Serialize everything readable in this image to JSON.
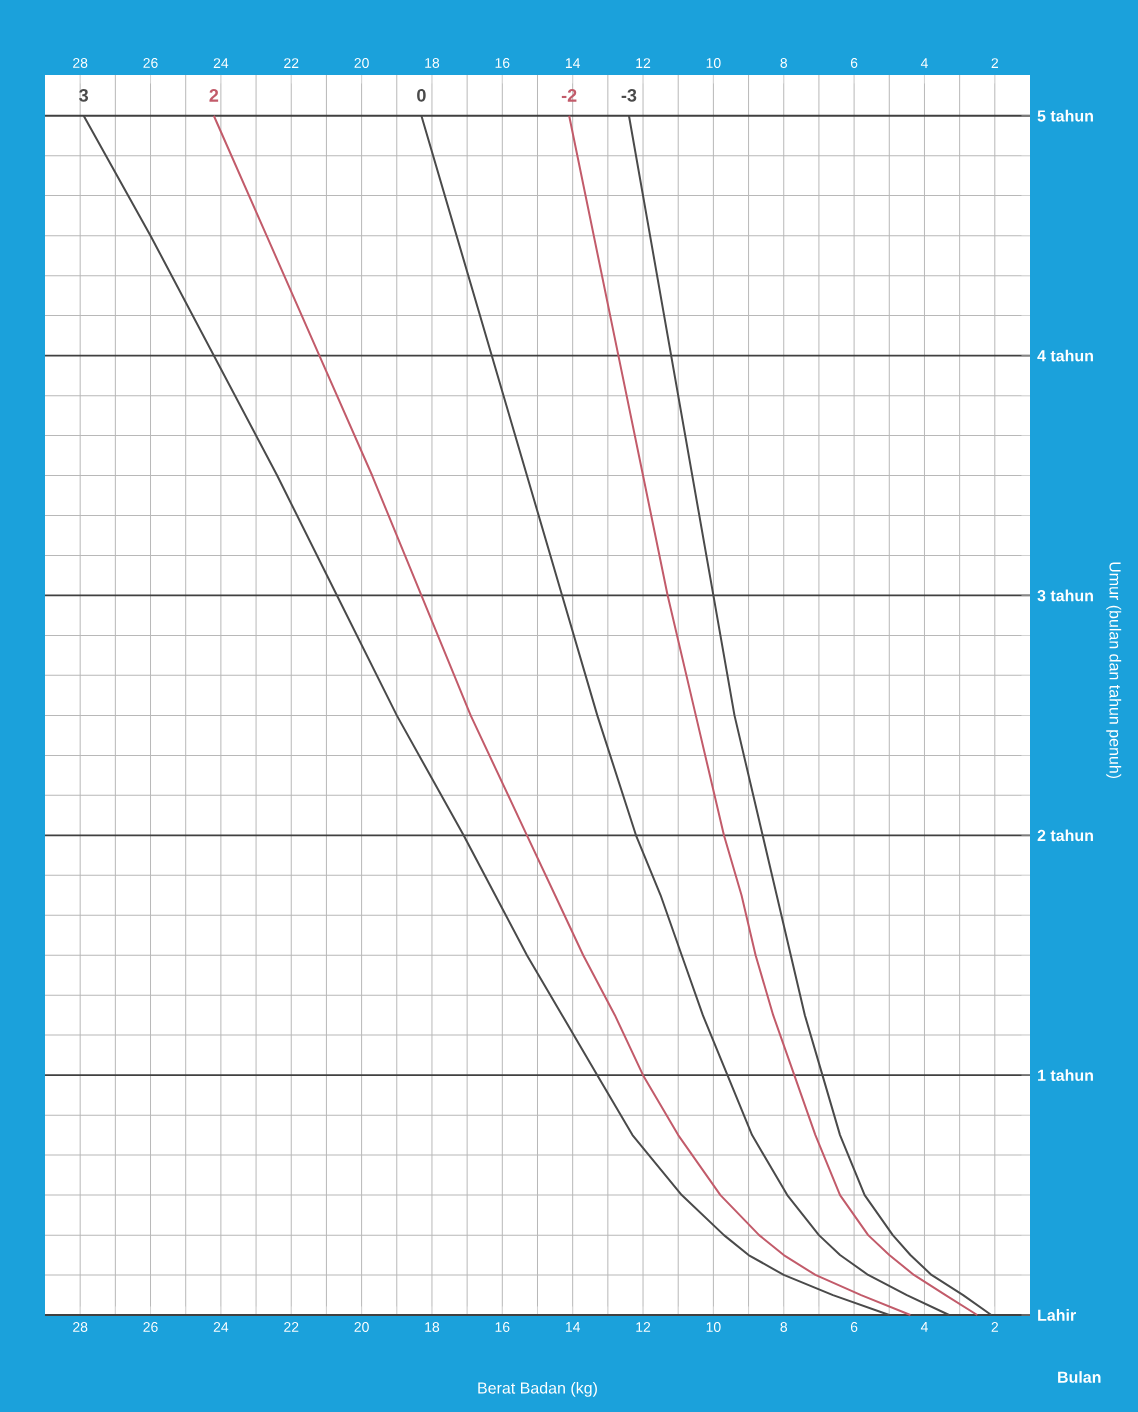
{
  "chart_data": {
    "type": "line",
    "xlabel": "Berat Badan (kg)",
    "ylabel": "Umur (bulan dan tahun penuh)",
    "annotations": [
      "Bulan"
    ],
    "xlim": [
      29,
      1
    ],
    "xticks": [
      28,
      {
        "value": 27,
        "label": null
      },
      26,
      {
        "value": 25,
        "label": null
      },
      24,
      {
        "value": 23,
        "label": null
      },
      22,
      {
        "value": 21,
        "label": null
      },
      20,
      {
        "value": 19,
        "label": null
      },
      18,
      {
        "value": 17,
        "label": null
      },
      16,
      {
        "value": 15,
        "label": null
      },
      14,
      {
        "value": 13,
        "label": null
      },
      12,
      {
        "value": 11,
        "label": null
      },
      10,
      {
        "value": 9,
        "label": null
      },
      8,
      {
        "value": 7,
        "label": null
      },
      6,
      {
        "value": 5,
        "label": null
      },
      4,
      {
        "value": 3,
        "label": null
      },
      2
    ],
    "x2lim": [
      29,
      1
    ],
    "x2ticks": [
      28,
      26,
      24,
      22,
      20,
      18,
      16,
      14,
      12,
      10,
      8,
      6,
      4,
      2
    ],
    "ylim": [
      0,
      5.17
    ],
    "yticks": [
      {
        "value": 0,
        "label": "Lahir"
      },
      {
        "value": 0.167,
        "label": null
      },
      {
        "value": 0.333,
        "label": null
      },
      {
        "value": 0.5,
        "label": null
      },
      {
        "value": 0.667,
        "label": null
      },
      {
        "value": 0.833,
        "label": null
      },
      {
        "value": 1,
        "label": "1 tahun"
      },
      {
        "value": 1.167,
        "label": null
      },
      {
        "value": 1.333,
        "label": null
      },
      {
        "value": 1.5,
        "label": null
      },
      {
        "value": 1.667,
        "label": null
      },
      {
        "value": 1.833,
        "label": null
      },
      {
        "value": 2,
        "label": "2 tahun"
      },
      {
        "value": 2.167,
        "label": null
      },
      {
        "value": 2.333,
        "label": null
      },
      {
        "value": 2.5,
        "label": null
      },
      {
        "value": 2.667,
        "label": null
      },
      {
        "value": 2.833,
        "label": null
      },
      {
        "value": 3,
        "label": "3 tahun"
      },
      {
        "value": 3.167,
        "label": null
      },
      {
        "value": 3.333,
        "label": null
      },
      {
        "value": 3.5,
        "label": null
      },
      {
        "value": 3.667,
        "label": null
      },
      {
        "value": 3.833,
        "label": null
      },
      {
        "value": 4,
        "label": "4 tahun"
      },
      {
        "value": 4.167,
        "label": null
      },
      {
        "value": 4.333,
        "label": null
      },
      {
        "value": 4.5,
        "label": null
      },
      {
        "value": 4.667,
        "label": null
      },
      {
        "value": 4.833,
        "label": null
      },
      {
        "value": 5,
        "label": "5 tahun"
      }
    ],
    "grid": true,
    "line_style": "solid",
    "series": [
      {
        "name": "3",
        "color": "#4a4a4a",
        "x": [
          5.0,
          6.6,
          8.0,
          9.0,
          9.7,
          10.9,
          12.3,
          13.3,
          14.3,
          15.3,
          16.2,
          17.1,
          19.0,
          20.7,
          22.4,
          24.2,
          26.0,
          27.9
        ],
        "values": [
          0,
          0.083,
          0.167,
          0.25,
          0.333,
          0.5,
          0.75,
          1,
          1.25,
          1.5,
          1.75,
          2,
          2.5,
          3,
          3.5,
          4,
          4.5,
          5
        ]
      },
      {
        "name": "2",
        "color": "#c25b6a",
        "x": [
          4.4,
          5.8,
          7.1,
          8.0,
          8.7,
          9.8,
          11.0,
          12.0,
          12.8,
          13.7,
          14.5,
          15.3,
          16.9,
          18.3,
          19.7,
          21.2,
          22.7,
          24.2
        ],
        "values": [
          0,
          0.083,
          0.167,
          0.25,
          0.333,
          0.5,
          0.75,
          1,
          1.25,
          1.5,
          1.75,
          2,
          2.5,
          3,
          3.5,
          4,
          4.5,
          5
        ]
      },
      {
        "name": "0",
        "color": "#4a4a4a",
        "x": [
          3.3,
          4.5,
          5.6,
          6.4,
          7.0,
          7.9,
          8.9,
          9.6,
          10.3,
          10.9,
          11.5,
          12.2,
          13.3,
          14.3,
          15.3,
          16.3,
          17.3,
          18.3
        ],
        "values": [
          0,
          0.083,
          0.167,
          0.25,
          0.333,
          0.5,
          0.75,
          1,
          1.25,
          1.5,
          1.75,
          2,
          2.5,
          3,
          3.5,
          4,
          4.5,
          5
        ]
      },
      {
        "name": "-2",
        "color": "#c25b6a",
        "x": [
          2.5,
          3.4,
          4.3,
          5.0,
          5.6,
          6.4,
          7.1,
          7.7,
          8.3,
          8.8,
          9.2,
          9.7,
          10.5,
          11.3,
          12.0,
          12.7,
          13.4,
          14.1
        ],
        "values": [
          0,
          0.083,
          0.167,
          0.25,
          0.333,
          0.5,
          0.75,
          1,
          1.25,
          1.5,
          1.75,
          2,
          2.5,
          3,
          3.5,
          4,
          4.5,
          5
        ]
      },
      {
        "name": "-3",
        "color": "#4a4a4a",
        "x": [
          2.1,
          2.9,
          3.8,
          4.4,
          4.9,
          5.7,
          6.4,
          6.9,
          7.4,
          7.8,
          8.2,
          8.6,
          9.4,
          10.0,
          10.6,
          11.2,
          11.8,
          12.4
        ],
        "values": [
          0,
          0.083,
          0.167,
          0.25,
          0.333,
          0.5,
          0.75,
          1,
          1.25,
          1.5,
          1.75,
          2,
          2.5,
          3,
          3.5,
          4,
          4.5,
          5
        ]
      }
    ]
  }
}
